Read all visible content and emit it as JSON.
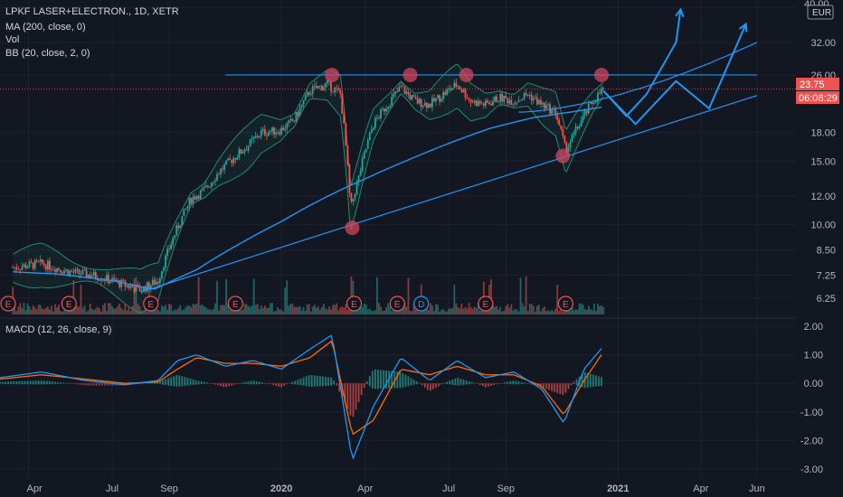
{
  "legend": {
    "symbol": "LPKF LASER+ELECTRON., 1D, XETR",
    "indicators": [
      "MA (200, close, 0)",
      "Vol",
      "BB (20, close, 2, 0)"
    ],
    "macd": "MACD (12, 26, close, 9)"
  },
  "price_axis": {
    "currency": "EUR",
    "last_price": "23.75",
    "countdown": "06:08:29",
    "top_label": "40.00"
  },
  "colors": {
    "background": "#131722",
    "candle_up": "#26a69a",
    "candle_down": "#ef5350",
    "ma": "#2196f3",
    "bb": "#1e8c6e",
    "drawings": "#2196f3",
    "markers": "#d0455f",
    "macd": "#2196f3",
    "signal": "#ff6d00",
    "axis_text": "#b2b5be",
    "grid": "#1e222d"
  },
  "chart_data": [
    {
      "type": "line",
      "title": "LPKF LASER+ELECTRON., 1D, XETR",
      "scale": "log",
      "ylim": [
        5.8,
        41
      ],
      "y_ticks": [
        "40.00",
        "32.00",
        "26.00",
        "18.00",
        "15.00",
        "12.00",
        "10.00",
        "8.50",
        "7.25",
        "6.25"
      ],
      "x_ticks": [
        "Apr",
        "Jul",
        "Sep",
        "2020",
        "Apr",
        "Jul",
        "Sep",
        "2021",
        "Apr",
        "Jun"
      ],
      "x_range": [
        "2019-03",
        "2021-06"
      ],
      "series": [
        {
          "name": "Close",
          "x": [
            "2019-03-15",
            "2019-04-15",
            "2019-05-15",
            "2019-06-15",
            "2019-07-15",
            "2019-08-01",
            "2019-08-20",
            "2019-09-10",
            "2019-09-25",
            "2019-10-10",
            "2019-10-25",
            "2019-11-10",
            "2019-11-25",
            "2019-12-10",
            "2019-12-31",
            "2020-01-15",
            "2020-02-01",
            "2020-02-20",
            "2020-03-05",
            "2020-03-16",
            "2020-03-25",
            "2020-04-10",
            "2020-04-25",
            "2020-05-10",
            "2020-05-25",
            "2020-06-10",
            "2020-06-25",
            "2020-07-10",
            "2020-07-25",
            "2020-08-10",
            "2020-08-25",
            "2020-09-10",
            "2020-09-25",
            "2020-10-10",
            "2020-10-25",
            "2020-11-05",
            "2020-11-20",
            "2020-12-05",
            "2020-12-16"
          ],
          "values": [
            7.6,
            7.8,
            7.4,
            7.2,
            6.8,
            6.6,
            7.0,
            9.8,
            11.8,
            12.5,
            14.0,
            15.3,
            16.5,
            18.0,
            18.3,
            19.5,
            23.5,
            24.5,
            23.0,
            11.0,
            13.5,
            19.0,
            21.5,
            24.0,
            22.0,
            21.5,
            23.0,
            24.5,
            22.0,
            21.5,
            22.5,
            22.0,
            23.0,
            21.5,
            20.5,
            16.0,
            19.0,
            22.0,
            23.75
          ]
        },
        {
          "name": "MA (200, close, 0)",
          "x": [
            "2019-03-15",
            "2019-05-01",
            "2019-07-01",
            "2019-08-15",
            "2019-10-01",
            "2019-11-15",
            "2020-01-01",
            "2020-02-15",
            "2020-04-01",
            "2020-05-15",
            "2020-07-01",
            "2020-08-15",
            "2020-10-01",
            "2020-11-15",
            "2020-12-16"
          ],
          "values": [
            7.4,
            7.3,
            7.0,
            6.6,
            7.5,
            8.8,
            10.2,
            11.8,
            13.4,
            15.0,
            16.8,
            18.5,
            19.8,
            20.6,
            21.2
          ]
        }
      ],
      "annotations": {
        "markers": [
          {
            "x": "2020-02-25",
            "y": 26.0
          },
          {
            "x": "2020-03-18",
            "y": 9.8
          },
          {
            "x": "2020-05-20",
            "y": 26.0
          },
          {
            "x": "2020-07-20",
            "y": 26.0
          },
          {
            "x": "2020-11-02",
            "y": 15.5
          },
          {
            "x": "2020-12-14",
            "y": 26.0
          }
        ],
        "resistance": {
          "from": [
            "2019-11-01",
            26.0
          ],
          "to": [
            "2021-06-01",
            26.0
          ]
        },
        "support": {
          "from": [
            "2019-08-01",
            6.5
          ],
          "to": [
            "2021-06-01",
            22.8
          ]
        },
        "channel": {
          "from": [
            "2020-09-15",
            20.5
          ],
          "to": [
            "2021-06-01",
            32.0
          ]
        },
        "projection_a": [
          [
            "2020-12-16",
            23.5
          ],
          [
            "2021-01-10",
            20.0
          ],
          [
            "2021-02-01",
            23.0
          ],
          [
            "2021-03-05",
            32.0
          ],
          [
            "2021-03-10",
            39.5
          ]
        ],
        "projection_b": [
          [
            "2020-12-16",
            23.5
          ],
          [
            "2021-01-20",
            19.0
          ],
          [
            "2021-03-05",
            25.0
          ],
          [
            "2021-04-10",
            21.0
          ],
          [
            "2021-05-20",
            36.0
          ]
        ],
        "earnings_events": [
          {
            "label": "E",
            "x": "2019-03-08"
          },
          {
            "label": "E",
            "x": "2019-05-15"
          },
          {
            "label": "E",
            "x": "2019-08-12"
          },
          {
            "label": "E",
            "x": "2019-11-12"
          },
          {
            "label": "E",
            "x": "2020-03-20"
          },
          {
            "label": "E",
            "x": "2020-05-06"
          },
          {
            "label": "D",
            "x": "2020-06-01"
          },
          {
            "label": "E",
            "x": "2020-08-10"
          },
          {
            "label": "E",
            "x": "2020-11-05"
          }
        ]
      }
    },
    {
      "type": "line",
      "title": "MACD (12, 26, close, 9)",
      "ylim": [
        -3.1,
        2.1
      ],
      "y_ticks": [
        "2.00",
        "1.00",
        "0.00",
        "-1.00",
        "-2.00",
        "-3.00"
      ],
      "series": [
        {
          "name": "MACD",
          "x": [
            "2019-03-01",
            "2019-04-15",
            "2019-06-01",
            "2019-07-15",
            "2019-08-20",
            "2019-09-10",
            "2019-10-01",
            "2019-11-01",
            "2019-12-01",
            "2020-01-01",
            "2020-02-01",
            "2020-02-25",
            "2020-03-18",
            "2020-04-10",
            "2020-05-10",
            "2020-06-10",
            "2020-07-10",
            "2020-08-10",
            "2020-09-10",
            "2020-10-10",
            "2020-11-03",
            "2020-11-25",
            "2020-12-16"
          ],
          "values": [
            0.2,
            0.4,
            0.1,
            -0.05,
            0.1,
            0.8,
            1.0,
            0.6,
            0.8,
            0.5,
            1.2,
            1.7,
            -2.7,
            -0.8,
            0.9,
            0.1,
            0.8,
            0.2,
            0.4,
            -0.2,
            -1.4,
            0.5,
            1.3
          ]
        },
        {
          "name": "Signal",
          "x": [
            "2019-03-01",
            "2019-04-15",
            "2019-06-01",
            "2019-07-15",
            "2019-08-20",
            "2019-09-10",
            "2019-10-01",
            "2019-11-01",
            "2019-12-01",
            "2020-01-01",
            "2020-02-01",
            "2020-02-25",
            "2020-03-18",
            "2020-04-10",
            "2020-05-10",
            "2020-06-10",
            "2020-07-10",
            "2020-08-10",
            "2020-09-10",
            "2020-10-10",
            "2020-11-03",
            "2020-11-25",
            "2020-12-16"
          ],
          "values": [
            0.15,
            0.3,
            0.15,
            0.0,
            0.05,
            0.5,
            0.9,
            0.7,
            0.7,
            0.6,
            0.9,
            1.5,
            -1.8,
            -1.3,
            0.5,
            0.3,
            0.6,
            0.3,
            0.3,
            -0.1,
            -1.1,
            0.1,
            1.1
          ]
        }
      ]
    }
  ]
}
